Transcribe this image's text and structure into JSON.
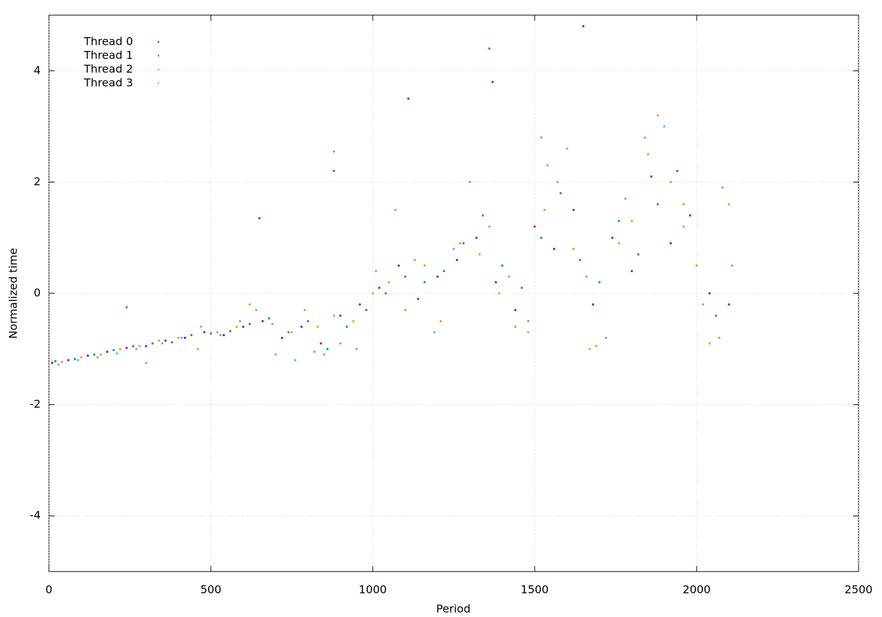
{
  "chart_data": {
    "type": "scatter",
    "x_label": "Period",
    "y_label": "Normalized time",
    "xlim": [
      0,
      2500
    ],
    "xticks": [
      0,
      500,
      1000,
      1500,
      2000,
      2500
    ],
    "ylim": [
      -5,
      5
    ],
    "yticks": [
      -4,
      -2,
      0,
      2,
      4
    ],
    "grid": true,
    "legend": "top-left",
    "series": [
      {
        "name": "Thread 0",
        "color": "#9400d3",
        "x": [
          10,
          60,
          120,
          180,
          240,
          300,
          360,
          420,
          480,
          540,
          600,
          660,
          720,
          780,
          840,
          900,
          960,
          1020,
          1080,
          1140,
          1200,
          1260,
          1320,
          1380,
          1440,
          1500,
          1560,
          1620,
          1680,
          1740,
          1800,
          1860,
          1920,
          1980,
          2040,
          2100,
          650,
          1650,
          1110,
          1370
        ],
        "values": [
          -1.25,
          -1.2,
          -1.12,
          -1.05,
          -0.98,
          -0.95,
          -0.85,
          -0.8,
          -0.7,
          -0.75,
          -0.6,
          -0.5,
          -0.8,
          -0.6,
          -0.9,
          -0.4,
          -0.2,
          0.1,
          0.5,
          -0.1,
          0.3,
          0.6,
          1.0,
          0.2,
          -0.3,
          1.2,
          0.8,
          1.5,
          -0.2,
          1.0,
          0.4,
          2.1,
          0.9,
          1.4,
          0.0,
          -0.2,
          1.35,
          4.8,
          3.5,
          3.8
        ]
      },
      {
        "name": "Thread 1",
        "color": "#009e73",
        "x": [
          20,
          80,
          140,
          200,
          260,
          320,
          380,
          440,
          500,
          560,
          620,
          680,
          740,
          800,
          860,
          920,
          980,
          1040,
          1100,
          1160,
          1220,
          1280,
          1340,
          1400,
          1460,
          1520,
          1580,
          1640,
          1700,
          1760,
          1820,
          1880,
          1940,
          2000,
          2060,
          240,
          880,
          1360
        ],
        "values": [
          -1.22,
          -1.18,
          -1.1,
          -1.02,
          -0.95,
          -0.9,
          -0.88,
          -0.75,
          -0.72,
          -0.68,
          -0.55,
          -0.45,
          -0.7,
          -0.5,
          -1.0,
          -0.6,
          -0.3,
          0.0,
          0.3,
          0.2,
          0.4,
          0.9,
          1.4,
          0.5,
          0.1,
          1.0,
          1.8,
          0.6,
          0.2,
          1.3,
          0.7,
          1.6,
          2.2,
          0.5,
          -0.4,
          -0.25,
          2.2,
          4.4
        ]
      },
      {
        "name": "Thread 2",
        "color": "#56b4e9",
        "x": [
          30,
          90,
          150,
          210,
          270,
          300,
          350,
          410,
          470,
          530,
          590,
          640,
          700,
          760,
          820,
          850,
          900,
          950,
          1010,
          1070,
          1130,
          1190,
          1250,
          1300,
          1360,
          1420,
          1480,
          1540,
          1600,
          1660,
          1720,
          1780,
          1840,
          1900,
          1960,
          2020,
          2080,
          2110,
          880,
          1520
        ],
        "values": [
          -1.28,
          -1.2,
          -1.15,
          -1.08,
          -1.0,
          -1.25,
          -0.9,
          -0.8,
          -0.6,
          -0.75,
          -0.5,
          -0.3,
          -1.1,
          -1.2,
          -1.05,
          -1.1,
          -0.9,
          -1.0,
          0.4,
          1.5,
          0.6,
          -0.7,
          0.8,
          2.0,
          1.2,
          0.3,
          -0.5,
          2.3,
          2.6,
          0.3,
          -0.8,
          1.7,
          2.8,
          3.0,
          1.2,
          -0.2,
          1.9,
          0.5,
          2.55,
          2.8
        ]
      },
      {
        "name": "Thread 3",
        "color": "#e69f00",
        "x": [
          40,
          100,
          160,
          220,
          280,
          340,
          400,
          460,
          520,
          580,
          620,
          690,
          750,
          790,
          830,
          880,
          940,
          1000,
          1050,
          1100,
          1160,
          1210,
          1270,
          1330,
          1390,
          1440,
          1480,
          1530,
          1570,
          1620,
          1670,
          1690,
          1760,
          1800,
          1850,
          1880,
          1920,
          1960,
          2000,
          2040,
          2070,
          2100
        ],
        "values": [
          -1.23,
          -1.15,
          -1.1,
          -1.0,
          -0.95,
          -0.85,
          -0.8,
          -1.0,
          -0.7,
          -0.6,
          -0.2,
          -0.55,
          -0.7,
          -0.3,
          -0.6,
          -0.4,
          -0.5,
          0.0,
          0.2,
          -0.3,
          0.5,
          -0.5,
          0.9,
          0.7,
          0.0,
          -0.6,
          -0.7,
          1.5,
          2.0,
          0.8,
          -1.0,
          -0.95,
          0.9,
          1.3,
          2.5,
          3.2,
          2.0,
          1.6,
          0.5,
          -0.9,
          -0.8,
          1.6
        ]
      }
    ]
  }
}
